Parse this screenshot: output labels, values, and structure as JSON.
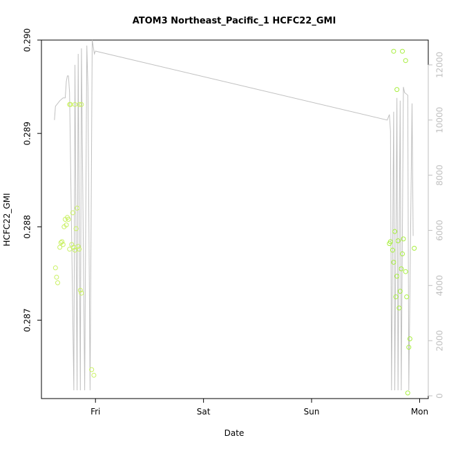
{
  "chart_data": {
    "type": "scatter",
    "title": "ATOM3 Northeast_Pacific_1 HCFC22_GMI",
    "xlabel": "Date",
    "ylabel": "HCFC22_GMI",
    "x_ticks": [
      "Fri",
      "Sat",
      "Sun",
      "Mon"
    ],
    "x_range_days": [
      -0.5,
      3.08
    ],
    "y_ticks": [
      "0.287",
      "0.288",
      "0.289",
      "0.290"
    ],
    "ylim": [
      0.28616,
      0.29
    ],
    "y2_ticks": [
      "0",
      "2000",
      "4000",
      "6000",
      "8000",
      "10000",
      "12000"
    ],
    "y2lim": [
      -100,
      12900
    ],
    "grid": false,
    "colors": {
      "line": "#c0c0c0",
      "points_group1": "#c8f060",
      "points_group2": "#a6ee3c",
      "right_axis": "#bfbfbf",
      "frame": "#000000"
    },
    "points_group1": [
      {
        "x": -0.37,
        "y": 0.28756
      },
      {
        "x": -0.36,
        "y": 0.28746
      },
      {
        "x": -0.35,
        "y": 0.2874
      },
      {
        "x": -0.33,
        "y": 0.28778
      },
      {
        "x": -0.32,
        "y": 0.28783
      },
      {
        "x": -0.31,
        "y": 0.28784
      },
      {
        "x": -0.3,
        "y": 0.28781
      },
      {
        "x": -0.29,
        "y": 0.288
      },
      {
        "x": -0.28,
        "y": 0.28808
      },
      {
        "x": -0.27,
        "y": 0.28802
      },
      {
        "x": -0.26,
        "y": 0.2881
      },
      {
        "x": -0.25,
        "y": 0.28808
      },
      {
        "x": -0.24,
        "y": 0.28776
      },
      {
        "x": -0.22,
        "y": 0.28781
      },
      {
        "x": -0.21,
        "y": 0.28815
      },
      {
        "x": -0.2,
        "y": 0.28778
      },
      {
        "x": -0.19,
        "y": 0.28775
      },
      {
        "x": -0.18,
        "y": 0.28798
      },
      {
        "x": -0.17,
        "y": 0.2882
      },
      {
        "x": -0.16,
        "y": 0.28779
      },
      {
        "x": -0.15,
        "y": 0.28776
      },
      {
        "x": -0.14,
        "y": 0.28732
      },
      {
        "x": -0.13,
        "y": 0.28729
      },
      {
        "x": -0.24,
        "y": 0.28931
      },
      {
        "x": -0.23,
        "y": 0.28931
      },
      {
        "x": -0.19,
        "y": 0.28931
      },
      {
        "x": -0.15,
        "y": 0.28931
      },
      {
        "x": -0.13,
        "y": 0.28931
      },
      {
        "x": -0.035,
        "y": 0.28647
      },
      {
        "x": -0.015,
        "y": 0.28641
      }
    ],
    "points_group2": [
      {
        "x": 2.72,
        "y": 0.28782
      },
      {
        "x": 2.73,
        "y": 0.28784
      },
      {
        "x": 2.75,
        "y": 0.28775
      },
      {
        "x": 2.76,
        "y": 0.28762
      },
      {
        "x": 2.77,
        "y": 0.28795
      },
      {
        "x": 2.78,
        "y": 0.28725
      },
      {
        "x": 2.79,
        "y": 0.28747
      },
      {
        "x": 2.8,
        "y": 0.28785
      },
      {
        "x": 2.81,
        "y": 0.28713
      },
      {
        "x": 2.82,
        "y": 0.28731
      },
      {
        "x": 2.83,
        "y": 0.28755
      },
      {
        "x": 2.84,
        "y": 0.28771
      },
      {
        "x": 2.85,
        "y": 0.28787
      },
      {
        "x": 2.87,
        "y": 0.28752
      },
      {
        "x": 2.88,
        "y": 0.28725
      },
      {
        "x": 2.9,
        "y": 0.28671
      },
      {
        "x": 2.91,
        "y": 0.2868
      },
      {
        "x": 2.95,
        "y": 0.28777
      },
      {
        "x": 2.89,
        "y": 0.28622
      },
      {
        "x": 2.76,
        "y": 0.28988
      },
      {
        "x": 2.84,
        "y": 0.28988
      },
      {
        "x": 2.87,
        "y": 0.28978
      },
      {
        "x": 2.79,
        "y": 0.28947
      }
    ],
    "line_right_axis": [
      [
        -0.38,
        10000
      ],
      [
        -0.37,
        10500
      ],
      [
        -0.35,
        10600
      ],
      [
        -0.33,
        10700
      ],
      [
        -0.3,
        10800
      ],
      [
        -0.28,
        10800
      ],
      [
        -0.27,
        11400
      ],
      [
        -0.26,
        11600
      ],
      [
        -0.25,
        11600
      ],
      [
        -0.24,
        11000
      ],
      [
        -0.2,
        200
      ],
      [
        -0.19,
        12000
      ],
      [
        -0.17,
        200
      ],
      [
        -0.16,
        12400
      ],
      [
        -0.14,
        200
      ],
      [
        -0.13,
        12600
      ],
      [
        -0.1,
        200
      ],
      [
        -0.08,
        12700
      ],
      [
        -0.07,
        11200
      ],
      [
        -0.05,
        200
      ],
      [
        -0.03,
        12900
      ],
      [
        -0.01,
        12400
      ],
      [
        0.0,
        12500
      ],
      [
        2.7,
        10000
      ],
      [
        2.72,
        10200
      ],
      [
        2.73,
        9600
      ],
      [
        2.74,
        200
      ],
      [
        2.76,
        10300
      ],
      [
        2.77,
        200
      ],
      [
        2.79,
        10800
      ],
      [
        2.8,
        200
      ],
      [
        2.82,
        10700
      ],
      [
        2.83,
        200
      ],
      [
        2.85,
        11200
      ],
      [
        2.86,
        11000
      ],
      [
        2.89,
        10900
      ],
      [
        2.9,
        200
      ],
      [
        2.93,
        10600
      ],
      [
        2.94,
        5800
      ]
    ]
  }
}
